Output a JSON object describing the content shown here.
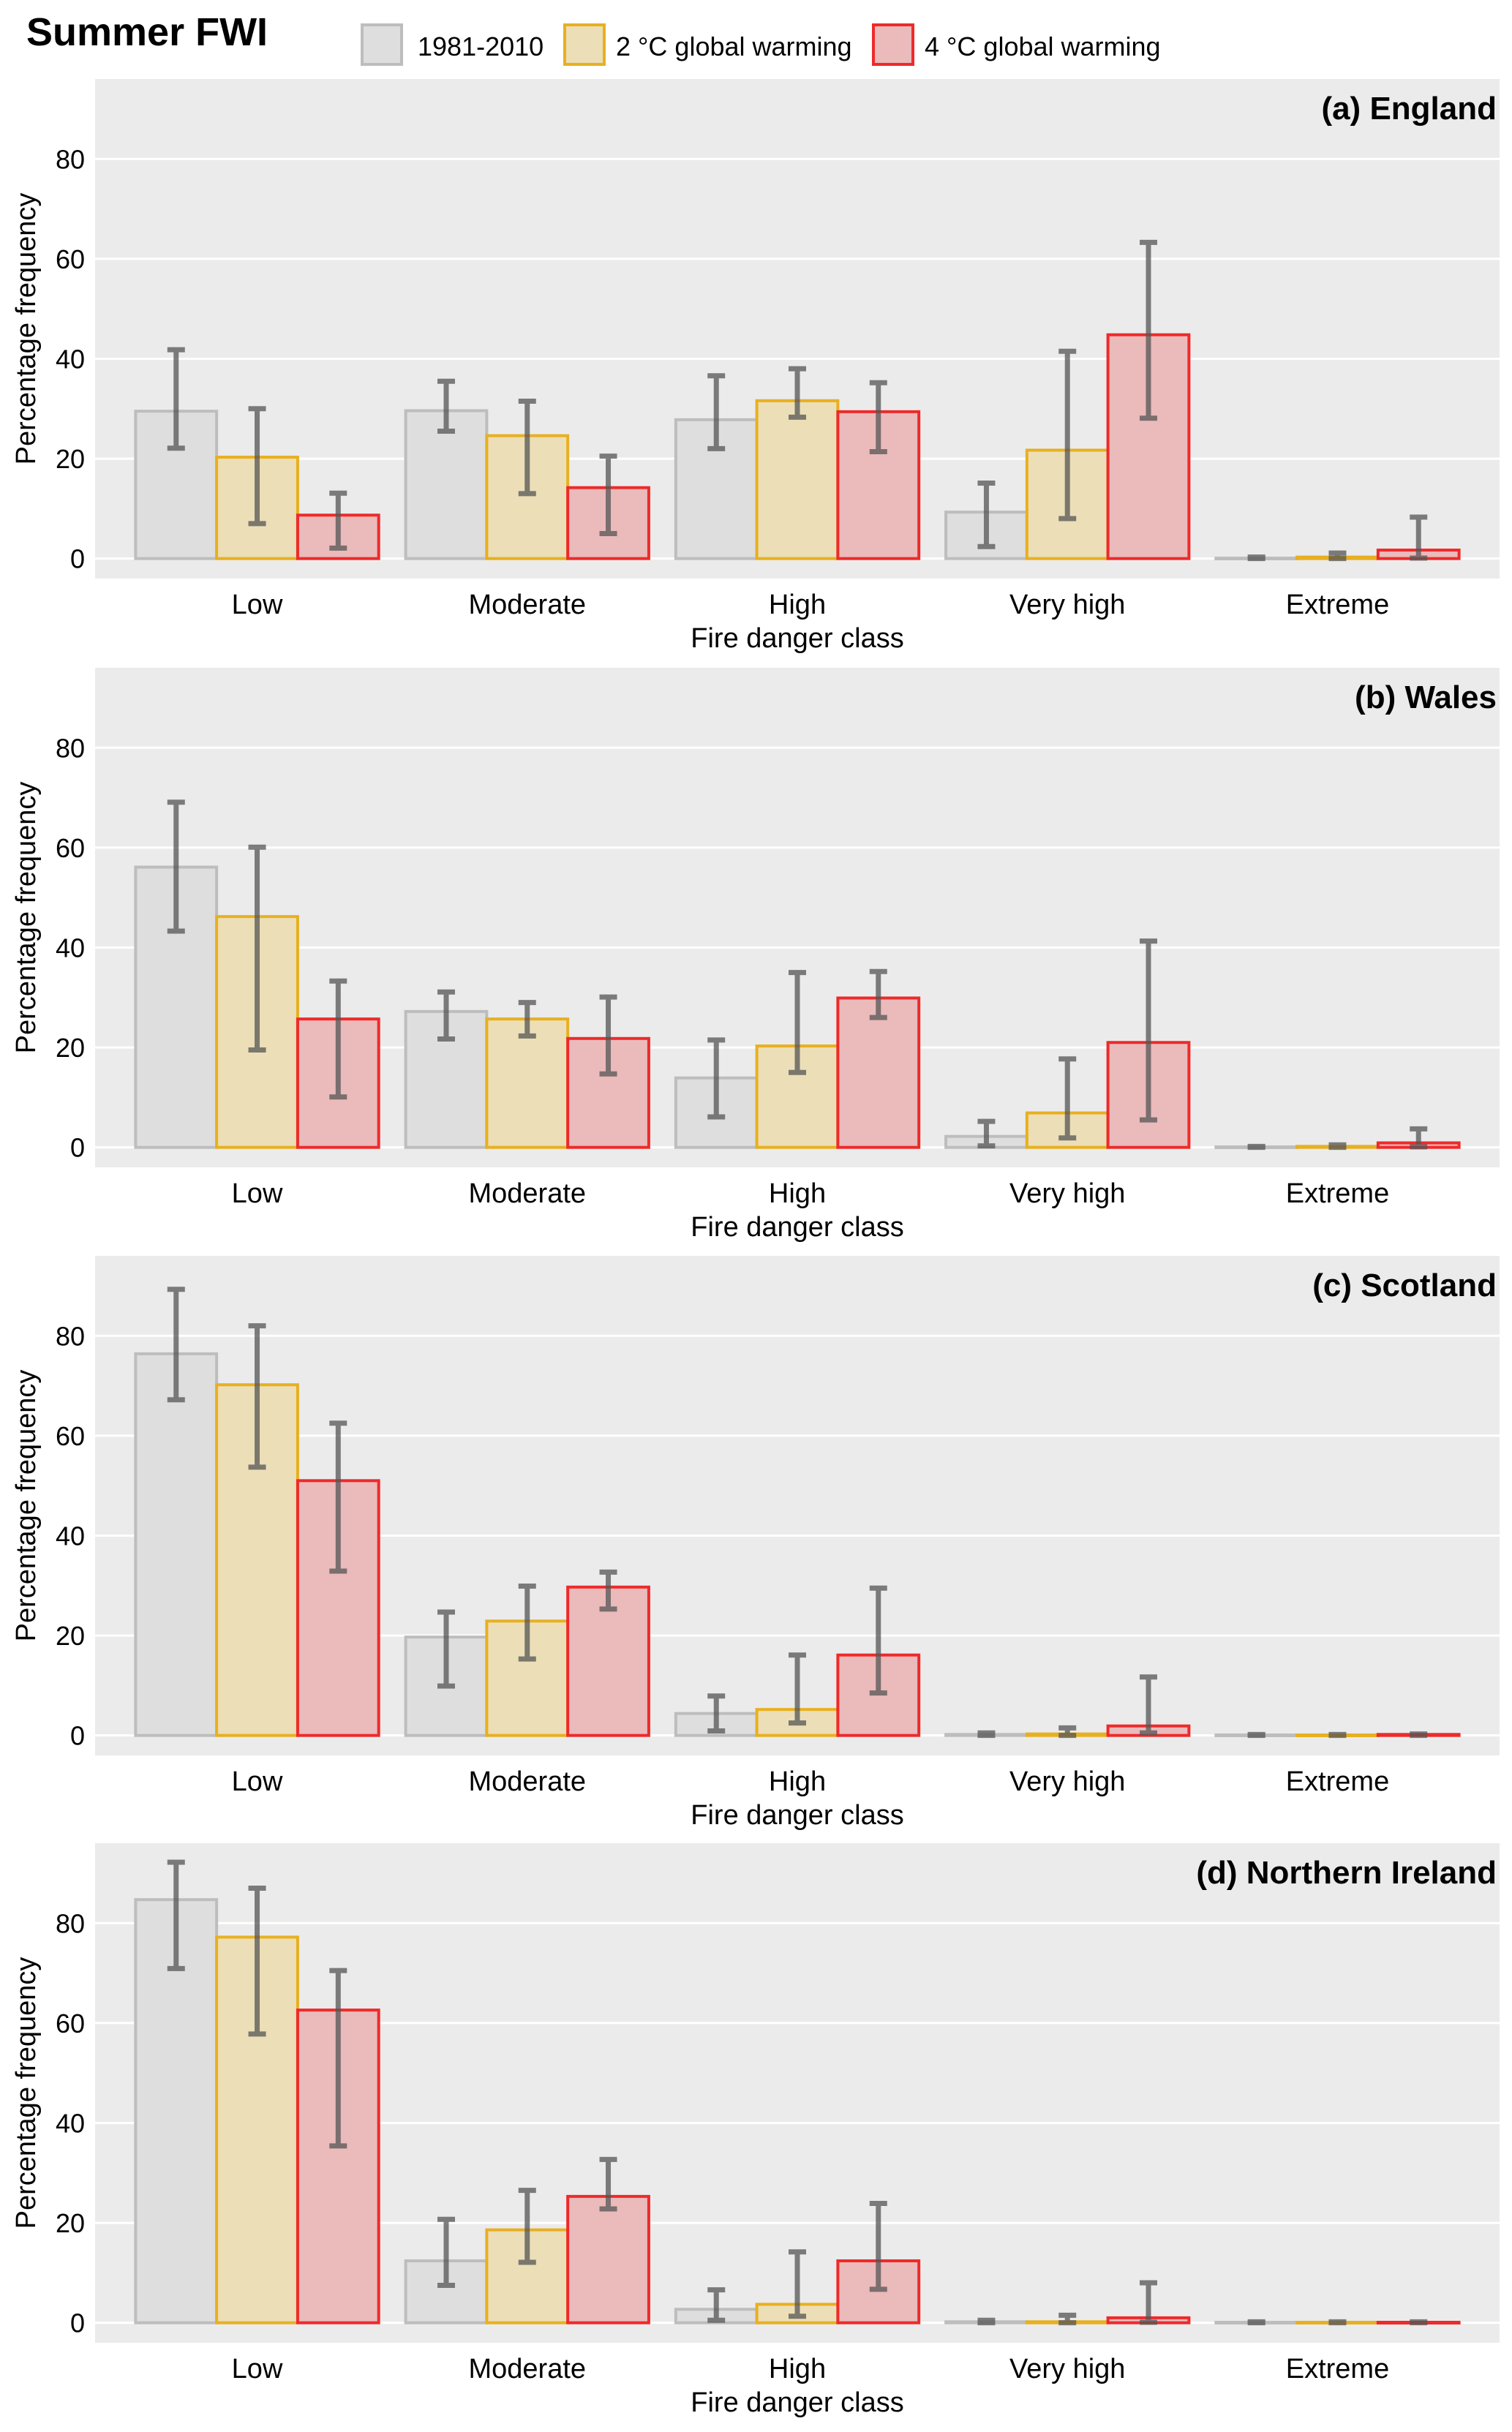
{
  "chart_data": {
    "type": "bar",
    "title": "Summer FWI",
    "xlabel": "Fire danger class",
    "ylabel": "Percentage frequency",
    "ylim": [
      -4,
      96
    ],
    "yticks": [
      0,
      20,
      40,
      60,
      80
    ],
    "grid": true,
    "legend_position": "top",
    "categories": [
      "Low",
      "Moderate",
      "High",
      "Very high",
      "Extreme"
    ],
    "legend": [
      {
        "name": "1981-2010",
        "fill": "#dedede",
        "stroke": "#bdbdbd"
      },
      {
        "name": "2 °C global warming",
        "fill": "#ecdeb7",
        "stroke": "#e8b020"
      },
      {
        "name": "4 °C global warming",
        "fill": "#ebbabb",
        "stroke": "#ee2a2a"
      }
    ],
    "errorbar_color": "#555555",
    "panels": [
      {
        "label": "(a) England",
        "series": [
          {
            "name": "1981-2010",
            "values": [
              29.5,
              29.6,
              27.8,
              9.3,
              0.1
            ],
            "lower": [
              22.1,
              25.5,
              22.0,
              2.4,
              0.0
            ],
            "upper": [
              41.8,
              35.5,
              36.6,
              15.1,
              0.3
            ]
          },
          {
            "name": "2 °C global warming",
            "values": [
              20.3,
              24.6,
              31.6,
              21.7,
              0.3
            ],
            "lower": [
              7.0,
              13.0,
              28.3,
              8.0,
              0.0
            ],
            "upper": [
              30.0,
              31.5,
              38.0,
              41.5,
              1.1
            ]
          },
          {
            "name": "4 °C global warming",
            "values": [
              8.7,
              14.2,
              29.4,
              44.8,
              1.7
            ],
            "lower": [
              2.1,
              5.0,
              21.4,
              28.1,
              0.1
            ],
            "upper": [
              13.1,
              20.5,
              35.2,
              63.3,
              8.3
            ]
          }
        ]
      },
      {
        "label": "(b) Wales",
        "series": [
          {
            "name": "1981-2010",
            "values": [
              56.1,
              27.2,
              13.9,
              2.2,
              0.1
            ],
            "lower": [
              43.3,
              21.7,
              6.1,
              0.3,
              0.0
            ],
            "upper": [
              69.1,
              31.1,
              21.5,
              5.2,
              0.2
            ]
          },
          {
            "name": "2 °C global warming",
            "values": [
              46.2,
              25.7,
              20.3,
              6.9,
              0.2
            ],
            "lower": [
              19.5,
              22.3,
              15.0,
              1.9,
              0.0
            ],
            "upper": [
              60.1,
              29.0,
              35.0,
              17.7,
              0.5
            ]
          },
          {
            "name": "4 °C global warming",
            "values": [
              25.7,
              21.8,
              29.9,
              21.0,
              0.9
            ],
            "lower": [
              10.1,
              14.7,
              26.0,
              5.5,
              0.1
            ],
            "upper": [
              33.3,
              30.1,
              35.2,
              41.3,
              3.7
            ]
          }
        ]
      },
      {
        "label": "(c) Scotland",
        "series": [
          {
            "name": "1981-2010",
            "values": [
              76.4,
              19.7,
              4.4,
              0.2,
              0.1
            ],
            "lower": [
              67.2,
              9.9,
              0.9,
              0.0,
              0.0
            ],
            "upper": [
              89.3,
              24.7,
              7.9,
              0.5,
              0.2
            ]
          },
          {
            "name": "2 °C global warming",
            "values": [
              70.2,
              22.9,
              5.2,
              0.3,
              0.1
            ],
            "lower": [
              53.7,
              15.3,
              2.5,
              0.0,
              0.0
            ],
            "upper": [
              82.0,
              29.9,
              16.1,
              1.5,
              0.2
            ]
          },
          {
            "name": "4 °C global warming",
            "values": [
              51.0,
              29.7,
              16.1,
              1.9,
              0.2
            ],
            "lower": [
              32.9,
              25.3,
              8.5,
              0.5,
              0.0
            ],
            "upper": [
              62.5,
              32.7,
              29.5,
              11.7,
              0.3
            ]
          }
        ]
      },
      {
        "label": "(d) Northern Ireland",
        "series": [
          {
            "name": "1981-2010",
            "values": [
              84.7,
              12.4,
              2.7,
              0.2,
              0.1
            ],
            "lower": [
              70.9,
              7.5,
              0.5,
              0.0,
              0.0
            ],
            "upper": [
              92.2,
              20.7,
              6.6,
              0.5,
              0.2
            ]
          },
          {
            "name": "2 °C global warming",
            "values": [
              77.2,
              18.6,
              3.7,
              0.2,
              0.1
            ],
            "lower": [
              57.8,
              12.1,
              1.3,
              0.0,
              0.0
            ],
            "upper": [
              87.0,
              26.5,
              14.2,
              1.5,
              0.2
            ]
          },
          {
            "name": "4 °C global warming",
            "values": [
              62.6,
              25.3,
              12.4,
              1.0,
              0.1
            ],
            "lower": [
              35.4,
              22.8,
              6.7,
              0.1,
              0.0
            ],
            "upper": [
              70.5,
              32.7,
              23.9,
              8.0,
              0.2
            ]
          }
        ]
      }
    ]
  }
}
